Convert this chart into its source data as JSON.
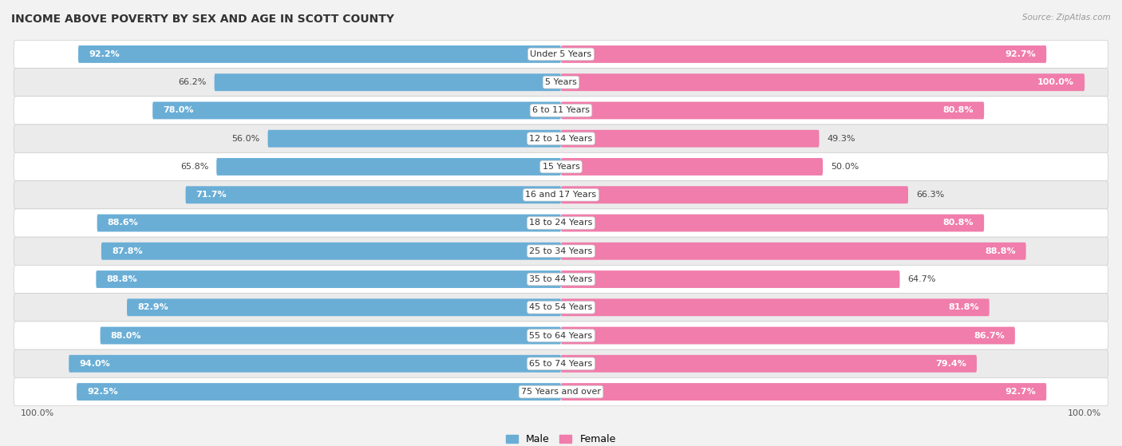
{
  "title": "INCOME ABOVE POVERTY BY SEX AND AGE IN SCOTT COUNTY",
  "source": "Source: ZipAtlas.com",
  "categories": [
    "Under 5 Years",
    "5 Years",
    "6 to 11 Years",
    "12 to 14 Years",
    "15 Years",
    "16 and 17 Years",
    "18 to 24 Years",
    "25 to 34 Years",
    "35 to 44 Years",
    "45 to 54 Years",
    "55 to 64 Years",
    "65 to 74 Years",
    "75 Years and over"
  ],
  "male_values": [
    92.2,
    66.2,
    78.0,
    56.0,
    65.8,
    71.7,
    88.6,
    87.8,
    88.8,
    82.9,
    88.0,
    94.0,
    92.5
  ],
  "female_values": [
    92.7,
    100.0,
    80.8,
    49.3,
    50.0,
    66.3,
    80.8,
    88.8,
    64.7,
    81.8,
    86.7,
    79.4,
    92.7
  ],
  "male_color": "#6aaed6",
  "female_color": "#f07dab",
  "male_light_color": "#aed0e8",
  "female_light_color": "#f9c0d8",
  "background_color": "#f2f2f2",
  "row_bg_odd": "#ffffff",
  "row_bg_even": "#ebebeb",
  "title_fontsize": 10,
  "label_fontsize": 8,
  "value_fontsize": 8,
  "axis_max": 100.0,
  "legend_labels": [
    "Male",
    "Female"
  ],
  "male_threshold": 70,
  "female_threshold": 70
}
